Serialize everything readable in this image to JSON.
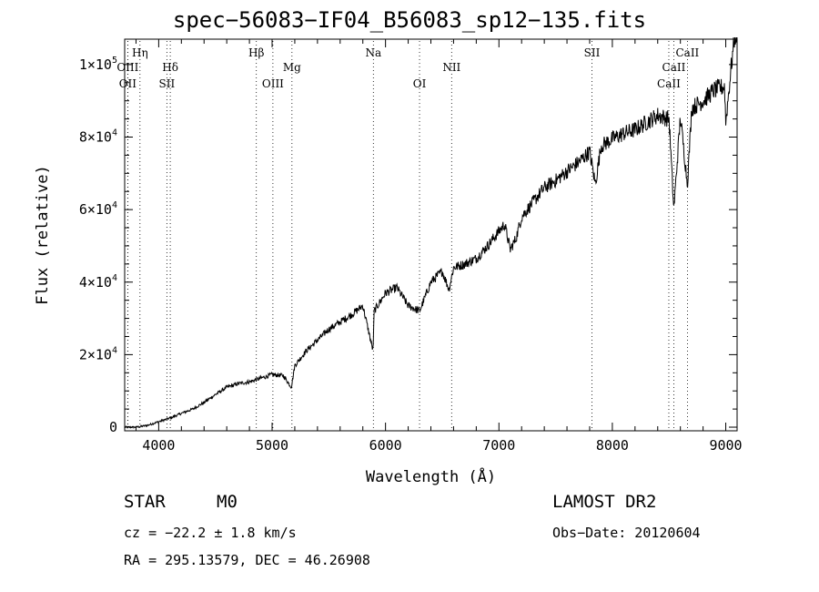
{
  "chart_data": {
    "type": "line",
    "title": "spec−56083−IF04_B56083_sp12−135.fits",
    "xlabel": "Wavelength (Å)",
    "ylabel": "Flux (relative)",
    "xlim": [
      3700,
      9100
    ],
    "ylim": [
      -1000,
      107000
    ],
    "grid": false,
    "x_ticks": [
      4000,
      5000,
      6000,
      7000,
      8000,
      9000
    ],
    "y_ticks": [
      {
        "value": 0,
        "mant": "0",
        "exp": ""
      },
      {
        "value": 20000,
        "mant": "2×10",
        "exp": "4"
      },
      {
        "value": 40000,
        "mant": "4×10",
        "exp": "4"
      },
      {
        "value": 60000,
        "mant": "6×10",
        "exp": "4"
      },
      {
        "value": 80000,
        "mant": "8×10",
        "exp": "4"
      },
      {
        "value": 100000,
        "mant": "1×10",
        "exp": "5"
      }
    ],
    "series": [
      {
        "x": [
          3700,
          3800,
          3900,
          4000,
          4100,
          4200,
          4300,
          4400,
          4500,
          4600,
          4700,
          4800,
          4900,
          5000,
          5100,
          5170,
          5200,
          5300,
          5400,
          5500,
          5600,
          5700,
          5800,
          5890,
          5900,
          6000,
          6100,
          6200,
          6300,
          6400,
          6500,
          6560,
          6600,
          6700,
          6800,
          6900,
          7000,
          7050,
          7100,
          7150,
          7200,
          7300,
          7400,
          7500,
          7600,
          7700,
          7800,
          7850,
          7900,
          8000,
          8100,
          8200,
          8300,
          8400,
          8500,
          8542,
          8600,
          8662,
          8700,
          8800,
          8900,
          8990,
          9000,
          9050,
          9080,
          9100
        ],
        "y": [
          0,
          0,
          500,
          1500,
          2500,
          3800,
          5000,
          6800,
          9000,
          11000,
          12000,
          12500,
          13500,
          14500,
          14200,
          11000,
          17000,
          21000,
          24000,
          27000,
          29000,
          31000,
          33500,
          21000,
          32000,
          37000,
          38500,
          33500,
          32000,
          40000,
          43000,
          38000,
          44000,
          45000,
          46500,
          50000,
          54000,
          56000,
          49000,
          52000,
          58000,
          62000,
          66000,
          68000,
          70500,
          73000,
          76000,
          67000,
          77500,
          79500,
          81000,
          82000,
          84000,
          86000,
          85000,
          60000,
          85500,
          67000,
          88000,
          90000,
          93000,
          94000,
          84000,
          100000,
          108000,
          108000
        ]
      }
    ],
    "lines": [
      {
        "label": "Hη",
        "x": 3835,
        "row": 1
      },
      {
        "label": "OIII",
        "x": 3727,
        "row": 2
      },
      {
        "label": "OII",
        "x": 3727,
        "row": 3
      },
      {
        "label": "Hδ",
        "x": 4102,
        "row": 2
      },
      {
        "label": "SII",
        "x": 4072,
        "row": 3
      },
      {
        "label": "Hβ",
        "x": 4861,
        "row": 1
      },
      {
        "label": "OIII",
        "x": 5007,
        "row": 3
      },
      {
        "label": "Mg",
        "x": 5175,
        "row": 2
      },
      {
        "label": "Na",
        "x": 5893,
        "row": 1
      },
      {
        "label": "OI",
        "x": 6300,
        "row": 3
      },
      {
        "label": "NII",
        "x": 6583,
        "row": 2
      },
      {
        "label": "SII",
        "x": 7820,
        "row": 1
      },
      {
        "label": "CaII",
        "x": 8662,
        "row": 1
      },
      {
        "label": "CaII",
        "x": 8542,
        "row": 2
      },
      {
        "label": "CaII",
        "x": 8498,
        "row": 3
      }
    ]
  },
  "info": {
    "type_label": "STAR",
    "subclass": "M0",
    "survey": "LAMOST DR2",
    "cz": "cz = −22.2 ± 1.8 km/s",
    "obs_date": "Obs−Date: 20120604",
    "coords": "RA = 295.13579, DEC =  46.26908"
  }
}
